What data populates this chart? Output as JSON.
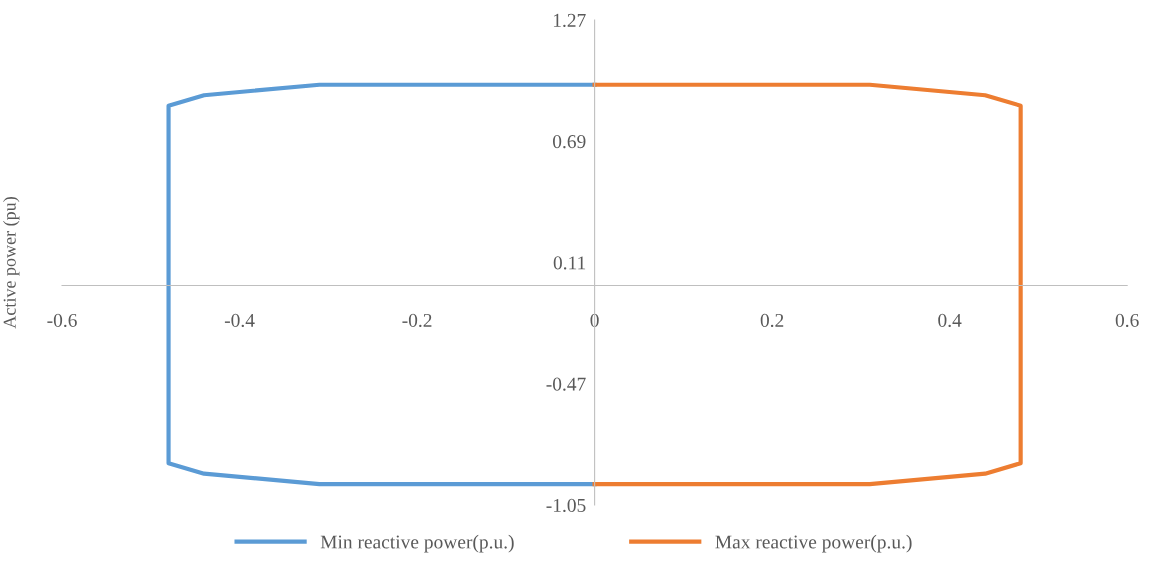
{
  "chart_data": {
    "type": "line",
    "ylabel": "Active power (pu)",
    "xlim": [
      -0.6,
      0.6
    ],
    "xticks": [
      -0.6,
      -0.4,
      -0.2,
      0,
      0.2,
      0.4,
      0.6
    ],
    "ylim": [
      -1.05,
      1.27
    ],
    "yticks": [
      -1.05,
      -0.47,
      0.11,
      0.69,
      1.27
    ],
    "grid": false,
    "legend": "bottom",
    "marker": "none",
    "line_style": "solid",
    "series": [
      {
        "name": "Min reactive power(p.u.)",
        "color": "#5b9bd5",
        "x": [
          0,
          -0.31,
          -0.44,
          -0.48,
          -0.48,
          -0.44,
          -0.31,
          0
        ],
        "values": [
          0.96,
          0.96,
          0.91,
          0.86,
          -0.85,
          -0.9,
          -0.95,
          -0.95
        ]
      },
      {
        "name": "Max reactive power(p.u.)",
        "color": "#ed7d31",
        "x": [
          0,
          0.31,
          0.44,
          0.48,
          0.48,
          0.44,
          0.31,
          0
        ],
        "values": [
          0.96,
          0.96,
          0.91,
          0.86,
          -0.85,
          -0.9,
          -0.95,
          -0.95
        ]
      }
    ]
  }
}
